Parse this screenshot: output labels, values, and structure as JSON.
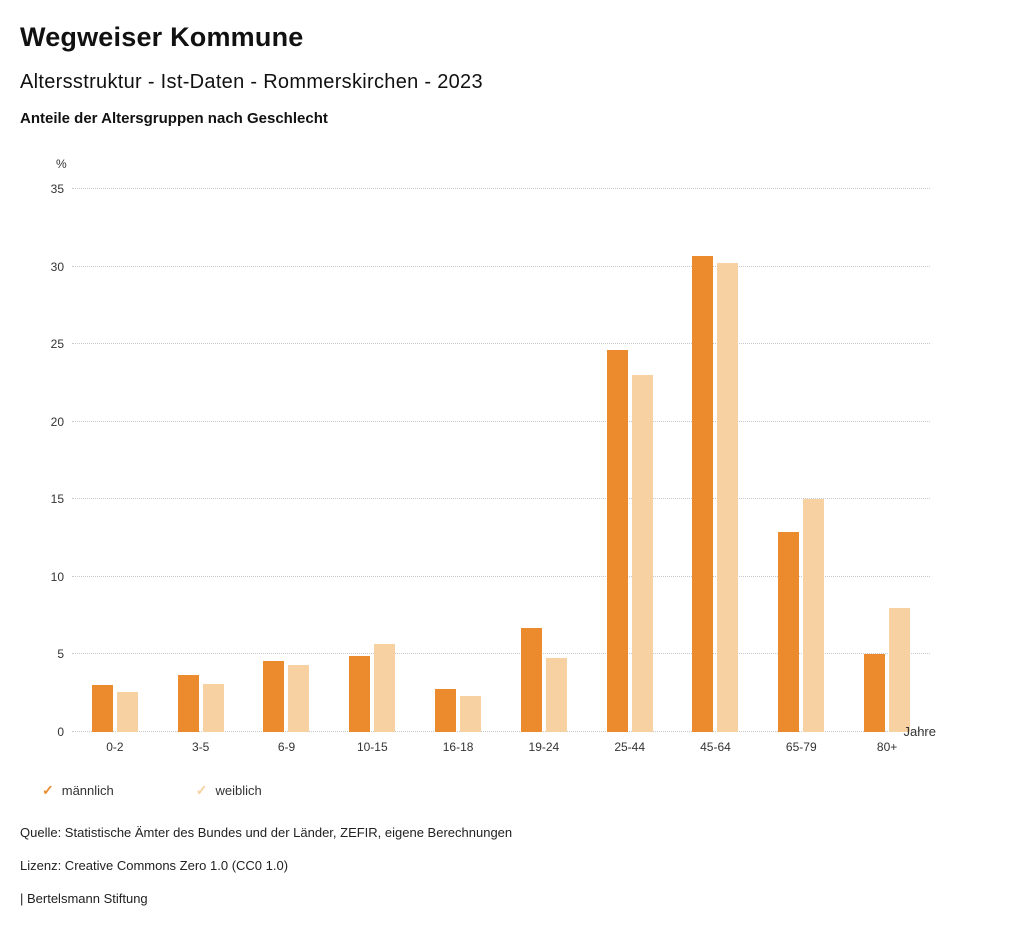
{
  "header": {
    "title": "Wegweiser Kommune",
    "subtitle": "Altersstruktur - Ist-Daten - Rommerskirchen - 2023",
    "chart_heading": "Anteile der Altersgruppen nach Geschlecht"
  },
  "chart_data": {
    "type": "bar",
    "title": "Anteile der Altersgruppen nach Geschlecht",
    "categories": [
      "0-2",
      "3-5",
      "6-9",
      "10-15",
      "16-18",
      "19-24",
      "25-44",
      "45-64",
      "65-79",
      "80+"
    ],
    "series": [
      {
        "name": "männlich",
        "color": "#ec8b2e",
        "values": [
          3.0,
          3.7,
          4.6,
          4.9,
          2.8,
          6.7,
          24.6,
          30.7,
          12.9,
          5.0
        ]
      },
      {
        "name": "weiblich",
        "color": "#f7d1a1",
        "values": [
          2.6,
          3.1,
          4.3,
          5.7,
          2.3,
          4.8,
          23.0,
          30.2,
          15.0,
          8.0
        ]
      }
    ],
    "ylabel": "%",
    "xlabel": "Jahre",
    "ylim": [
      0,
      35
    ],
    "ytick_step": 5,
    "grid": "horizontal-dotted",
    "legend_position": "bottom-left",
    "legend_marker": "✓"
  },
  "footer": {
    "source": "Quelle: Statistische Ämter des Bundes und der Länder, ZEFIR, eigene Berechnungen",
    "license": "Lizenz: Creative Commons Zero 1.0 (CC0 1.0)",
    "attribution": "| Bertelsmann Stiftung"
  }
}
